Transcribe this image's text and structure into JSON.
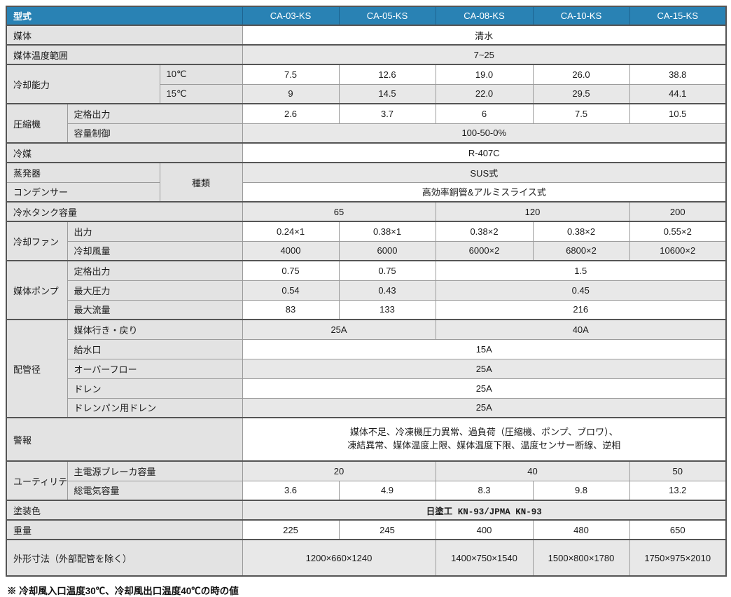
{
  "colors": {
    "header_bg": "#2982b4",
    "header_text": "#ffffff",
    "label_bg": "#e3e3e3",
    "alt_row_bg": "#e8e8e8",
    "border_strong": "#555555"
  },
  "table": {
    "header": {
      "label": "型式",
      "models": [
        "CA-03-KS",
        "CA-05-KS",
        "CA-08-KS",
        "CA-10-KS",
        "CA-15-KS"
      ]
    },
    "rows": [
      {
        "g": true,
        "shade": "w",
        "cells": [
          {
            "k": "l",
            "cs": 3,
            "t": "媒体"
          },
          {
            "k": "v",
            "cs": 5,
            "t": "清水"
          }
        ]
      },
      {
        "g": true,
        "shade": "g",
        "cells": [
          {
            "k": "l",
            "cs": 3,
            "t": "媒体温度範囲"
          },
          {
            "k": "v",
            "cs": 5,
            "t": "7~25"
          }
        ]
      },
      {
        "g": true,
        "shade": "w",
        "cells": [
          {
            "k": "l",
            "cs": 2,
            "rs": 2,
            "t": "冷却能力"
          },
          {
            "k": "l",
            "t": "10℃"
          },
          {
            "k": "v",
            "t": "7.5"
          },
          {
            "k": "v",
            "t": "12.6"
          },
          {
            "k": "v",
            "t": "19.0"
          },
          {
            "k": "v",
            "t": "26.0"
          },
          {
            "k": "v",
            "t": "38.8"
          }
        ]
      },
      {
        "shade": "g",
        "cells": [
          {
            "k": "l",
            "t": "15℃"
          },
          {
            "k": "v",
            "t": "9"
          },
          {
            "k": "v",
            "t": "14.5"
          },
          {
            "k": "v",
            "t": "22.0"
          },
          {
            "k": "v",
            "t": "29.5"
          },
          {
            "k": "v",
            "t": "44.1"
          }
        ]
      },
      {
        "g": true,
        "shade": "w",
        "cells": [
          {
            "k": "l",
            "rs": 2,
            "t": "圧縮機"
          },
          {
            "k": "l",
            "cs": 2,
            "t": "定格出力"
          },
          {
            "k": "v",
            "t": "2.6"
          },
          {
            "k": "v",
            "t": "3.7"
          },
          {
            "k": "v",
            "t": "6"
          },
          {
            "k": "v",
            "t": "7.5"
          },
          {
            "k": "v",
            "t": "10.5"
          }
        ]
      },
      {
        "shade": "g",
        "cells": [
          {
            "k": "l",
            "cs": 2,
            "t": "容量制御"
          },
          {
            "k": "v",
            "cs": 5,
            "t": "100-50-0%"
          }
        ]
      },
      {
        "g": true,
        "shade": "w",
        "cells": [
          {
            "k": "l",
            "cs": 3,
            "t": "冷媒"
          },
          {
            "k": "v",
            "cs": 5,
            "t": "R-407C"
          }
        ]
      },
      {
        "g": true,
        "shade": "g",
        "cells": [
          {
            "k": "l",
            "cs": 2,
            "t": "蒸発器"
          },
          {
            "k": "l",
            "rs": 2,
            "center": true,
            "t": "種類"
          },
          {
            "k": "v",
            "cs": 5,
            "t": "SUS式"
          }
        ]
      },
      {
        "shade": "w",
        "cells": [
          {
            "k": "l",
            "cs": 2,
            "t": "コンデンサー"
          },
          {
            "k": "v",
            "cs": 5,
            "t": "高効率銅管&アルミスライス式"
          }
        ]
      },
      {
        "g": true,
        "shade": "g",
        "cells": [
          {
            "k": "l",
            "cs": 3,
            "t": "冷水タンク容量"
          },
          {
            "k": "v",
            "cs": 2,
            "t": "65"
          },
          {
            "k": "v",
            "cs": 2,
            "t": "120"
          },
          {
            "k": "v",
            "t": "200"
          }
        ]
      },
      {
        "g": true,
        "shade": "w",
        "cells": [
          {
            "k": "l",
            "rs": 2,
            "t": "冷却ファン"
          },
          {
            "k": "l",
            "cs": 2,
            "t": "出力"
          },
          {
            "k": "v",
            "t": "0.24×1"
          },
          {
            "k": "v",
            "t": "0.38×1"
          },
          {
            "k": "v",
            "t": "0.38×2"
          },
          {
            "k": "v",
            "t": "0.38×2"
          },
          {
            "k": "v",
            "t": "0.55×2"
          }
        ]
      },
      {
        "shade": "g",
        "cells": [
          {
            "k": "l",
            "cs": 2,
            "t": "冷却風量"
          },
          {
            "k": "v",
            "t": "4000"
          },
          {
            "k": "v",
            "t": "6000"
          },
          {
            "k": "v",
            "t": "6000×2"
          },
          {
            "k": "v",
            "t": "6800×2"
          },
          {
            "k": "v",
            "t": "10600×2"
          }
        ]
      },
      {
        "g": true,
        "shade": "w",
        "cells": [
          {
            "k": "l",
            "rs": 3,
            "t": "媒体ポンプ"
          },
          {
            "k": "l",
            "cs": 2,
            "t": "定格出力"
          },
          {
            "k": "v",
            "t": "0.75"
          },
          {
            "k": "v",
            "t": "0.75"
          },
          {
            "k": "v",
            "cs": 3,
            "t": "1.5"
          }
        ]
      },
      {
        "shade": "g",
        "cells": [
          {
            "k": "l",
            "cs": 2,
            "t": "最大圧力"
          },
          {
            "k": "v",
            "t": "0.54"
          },
          {
            "k": "v",
            "t": "0.43"
          },
          {
            "k": "v",
            "cs": 3,
            "t": "0.45"
          }
        ]
      },
      {
        "shade": "w",
        "cells": [
          {
            "k": "l",
            "cs": 2,
            "t": "最大流量"
          },
          {
            "k": "v",
            "t": "83"
          },
          {
            "k": "v",
            "t": "133"
          },
          {
            "k": "v",
            "cs": 3,
            "t": "216"
          }
        ]
      },
      {
        "g": true,
        "shade": "g",
        "cells": [
          {
            "k": "l",
            "rs": 5,
            "t": "配管径"
          },
          {
            "k": "l",
            "cs": 2,
            "t": "媒体行き・戻り"
          },
          {
            "k": "v",
            "cs": 2,
            "t": "25A"
          },
          {
            "k": "v",
            "cs": 3,
            "t": "40A"
          }
        ]
      },
      {
        "shade": "w",
        "cells": [
          {
            "k": "l",
            "cs": 2,
            "t": "給水口"
          },
          {
            "k": "v",
            "cs": 5,
            "t": "15A"
          }
        ]
      },
      {
        "shade": "g",
        "cells": [
          {
            "k": "l",
            "cs": 2,
            "t": "オーバーフロー"
          },
          {
            "k": "v",
            "cs": 5,
            "t": "25A"
          }
        ]
      },
      {
        "shade": "w",
        "cells": [
          {
            "k": "l",
            "cs": 2,
            "t": "ドレン"
          },
          {
            "k": "v",
            "cs": 5,
            "t": "25A"
          }
        ]
      },
      {
        "shade": "g",
        "cells": [
          {
            "k": "l",
            "cs": 2,
            "t": "ドレンパン用ドレン"
          },
          {
            "k": "v",
            "cs": 5,
            "t": "25A"
          }
        ]
      },
      {
        "g": true,
        "shade": "w",
        "h": 62,
        "cells": [
          {
            "k": "l",
            "cs": 3,
            "t": "警報"
          },
          {
            "k": "v",
            "cs": 5,
            "lines": [
              "媒体不足、冷凍機圧力異常、過負荷（圧縮機、ポンプ、ブロワ）、",
              "凍結異常、媒体温度上限、媒体温度下限、温度センサー断線、逆相"
            ]
          }
        ]
      },
      {
        "g": true,
        "shade": "g",
        "cells": [
          {
            "k": "l",
            "rs": 2,
            "t": "ユーティリティ"
          },
          {
            "k": "l",
            "cs": 2,
            "t": "主電源ブレーカ容量"
          },
          {
            "k": "v",
            "cs": 2,
            "t": "20"
          },
          {
            "k": "v",
            "cs": 2,
            "t": "40"
          },
          {
            "k": "v",
            "t": "50"
          }
        ]
      },
      {
        "shade": "w",
        "cells": [
          {
            "k": "l",
            "cs": 2,
            "t": "総電気容量"
          },
          {
            "k": "v",
            "t": "3.6"
          },
          {
            "k": "v",
            "t": "4.9"
          },
          {
            "k": "v",
            "t": "8.3"
          },
          {
            "k": "v",
            "t": "9.8"
          },
          {
            "k": "v",
            "t": "13.2"
          }
        ]
      },
      {
        "g": true,
        "shade": "g",
        "cells": [
          {
            "k": "l",
            "cs": 3,
            "t": "塗装色"
          },
          {
            "k": "v",
            "cs": 5,
            "mono": true,
            "t": "日塗工 KN-93/JPMA KN-93"
          }
        ]
      },
      {
        "g": true,
        "shade": "w",
        "cells": [
          {
            "k": "l",
            "cs": 3,
            "t": "重量"
          },
          {
            "k": "v",
            "t": "225"
          },
          {
            "k": "v",
            "t": "245"
          },
          {
            "k": "v",
            "t": "400"
          },
          {
            "k": "v",
            "t": "480"
          },
          {
            "k": "v",
            "t": "650"
          }
        ]
      },
      {
        "g": true,
        "shade": "g",
        "h": 52,
        "cells": [
          {
            "k": "l",
            "cs": 3,
            "t": "外形寸法（外部配管を除く）"
          },
          {
            "k": "v",
            "cs": 2,
            "t": "1200×660×1240"
          },
          {
            "k": "v",
            "t": "1400×750×1540"
          },
          {
            "k": "v",
            "t": "1500×800×1780"
          },
          {
            "k": "v",
            "t": "1750×975×2010"
          }
        ]
      }
    ]
  },
  "footnote": "※ 冷却風入口温度30℃、冷却風出口温度40℃の時の値"
}
